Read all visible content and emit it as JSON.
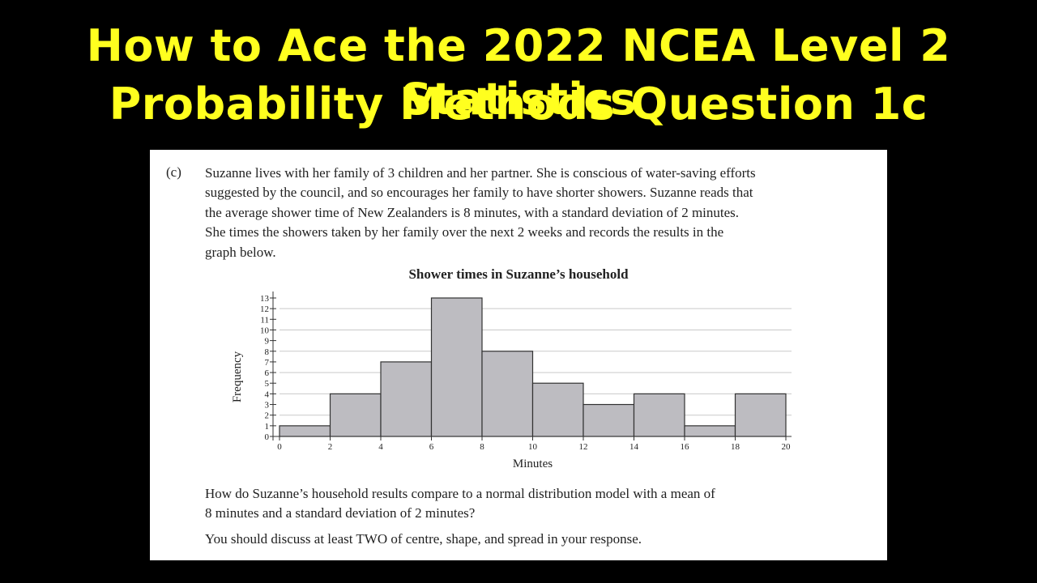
{
  "header": {
    "line1": "How to Ace the 2022 NCEA Level 2 Statistics",
    "line2": "Probability Methods Question 1c"
  },
  "question": {
    "label": "(c)",
    "paragraph_lines": [
      "Suzanne lives with her family of 3 children and her partner. She is conscious of water-saving efforts",
      "suggested by the council, and so encourages her family to have shorter showers. Suzanne reads that",
      "the average shower time of New Zealanders is 8 minutes, with a standard deviation of 2 minutes.",
      "She times the showers taken by her family over the next 2 weeks and records the results in the",
      "graph below."
    ],
    "prompt_lines": [
      "How do Suzanne’s household results compare to a normal distribution model with a mean of",
      "8 minutes and a standard deviation of 2 minutes?"
    ],
    "instruction": "You should discuss at least TWO of centre, shape, and spread in your response."
  },
  "chart_data": {
    "type": "bar",
    "title": "Shower times in Suzanne’s household",
    "xlabel": "Minutes",
    "ylabel": "Frequency",
    "bins": [
      [
        0,
        2
      ],
      [
        2,
        4
      ],
      [
        4,
        6
      ],
      [
        6,
        8
      ],
      [
        8,
        10
      ],
      [
        10,
        12
      ],
      [
        12,
        14
      ],
      [
        14,
        16
      ],
      [
        16,
        18
      ],
      [
        18,
        20
      ]
    ],
    "values": [
      1,
      4,
      7,
      13,
      8,
      5,
      3,
      4,
      1,
      4
    ],
    "xticks": [
      0,
      2,
      4,
      6,
      8,
      10,
      12,
      14,
      16,
      18,
      20
    ],
    "yticks": [
      0,
      1,
      2,
      3,
      4,
      5,
      6,
      7,
      8,
      9,
      10,
      11,
      12,
      13
    ],
    "xlim": [
      0,
      20
    ],
    "ylim": [
      0,
      13
    ],
    "gridlines_y": [
      2,
      4,
      6,
      8,
      10,
      12
    ],
    "bar_color": "#bdbcc1",
    "grid": true
  }
}
